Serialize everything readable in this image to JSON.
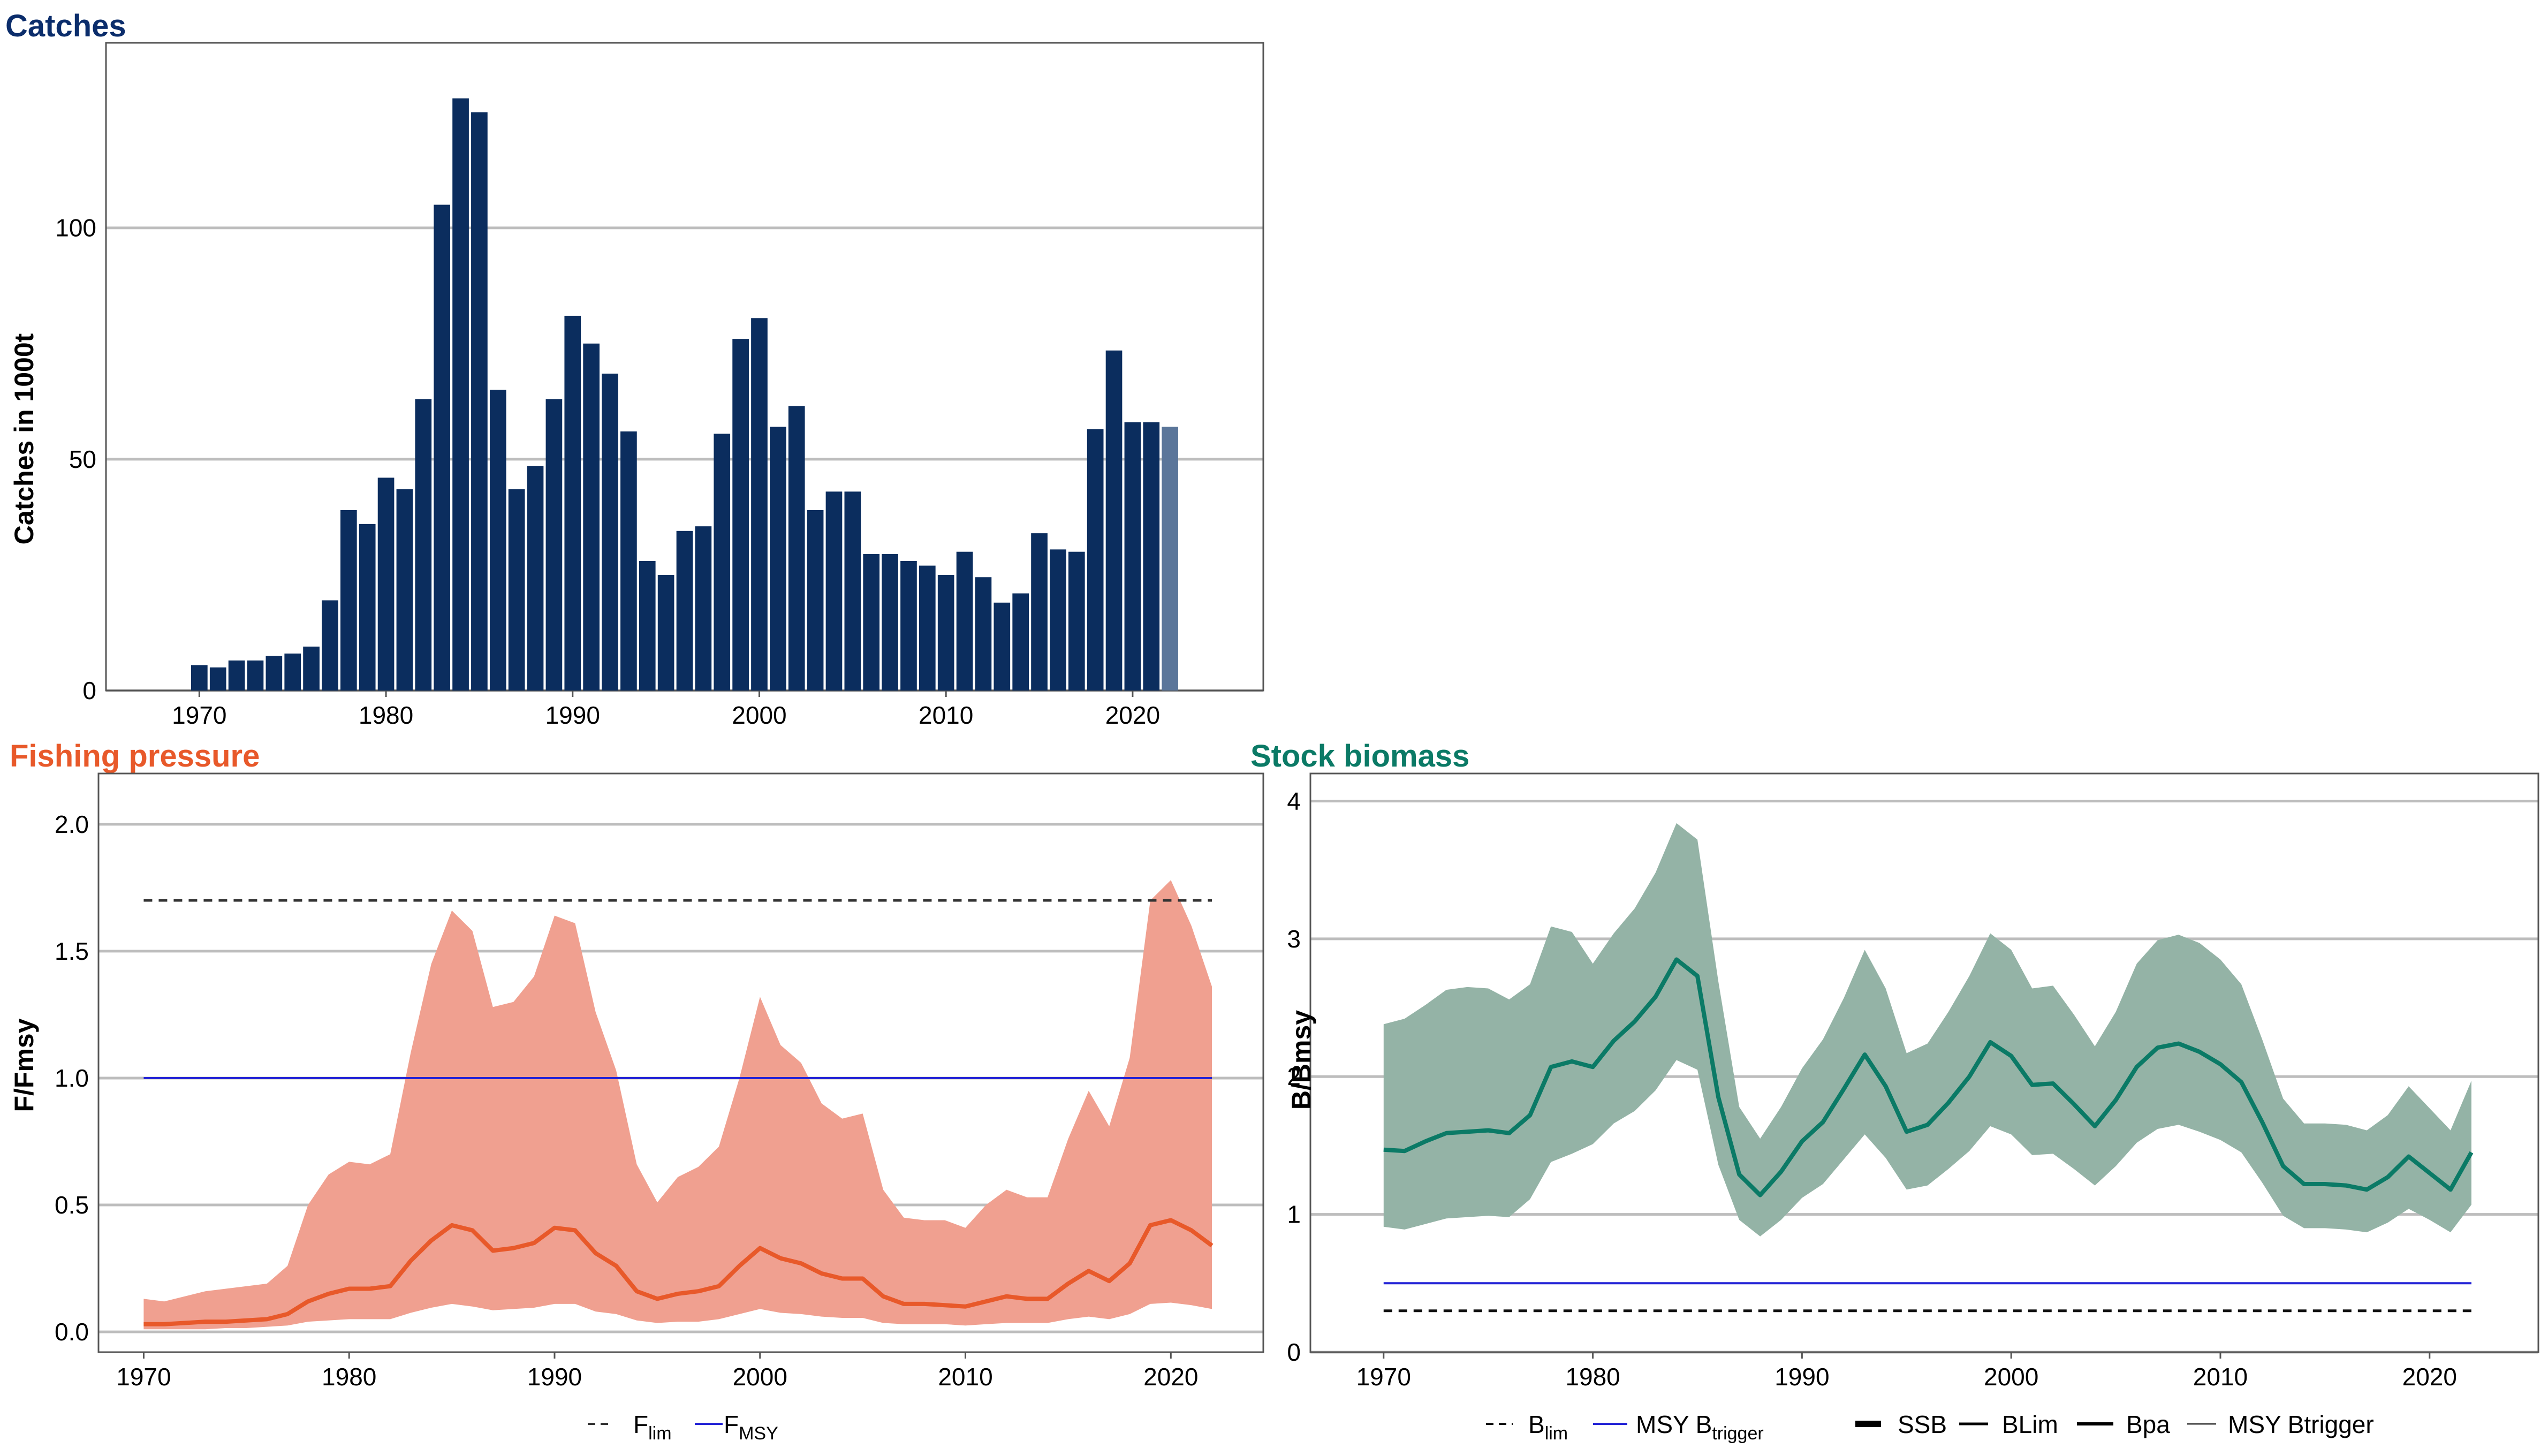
{
  "panels": {
    "catches": {
      "title": "Catches",
      "title_color": "#0b2d6b",
      "ylabel": "Catches in 1000t"
    },
    "fishing": {
      "title": "Fishing pressure",
      "title_color": "#e8592a",
      "ylabel": "F/Fmsy"
    },
    "biomass": {
      "title": "Stock biomass",
      "title_color": "#0b7a66",
      "ylabel": "B/Bmsy"
    }
  },
  "legends": {
    "fishing": [
      {
        "main": "F",
        "sub": "lim",
        "style": "dashed"
      },
      {
        "main": "F",
        "sub": "MSY",
        "style": "blue"
      }
    ],
    "biomass": [
      {
        "main": "B",
        "sub": "lim",
        "style": "dashed"
      },
      {
        "main": "MSY B",
        "sub": "trigger",
        "style": "blue"
      },
      {
        "main": "SSB",
        "sub": "",
        "style": "thick"
      },
      {
        "main": "BLim",
        "sub": "",
        "style": "line"
      },
      {
        "main": "Bpa",
        "sub": "",
        "style": "line"
      },
      {
        "main": "MSY Btrigger",
        "sub": "",
        "style": "thin"
      }
    ]
  },
  "chart_data": [
    {
      "type": "bar",
      "title": "Catches",
      "ylabel": "Catches in 1000t",
      "xlabel": "",
      "x": [
        1970,
        1971,
        1972,
        1973,
        1974,
        1975,
        1976,
        1977,
        1978,
        1979,
        1980,
        1981,
        1982,
        1983,
        1984,
        1985,
        1986,
        1987,
        1988,
        1989,
        1990,
        1991,
        1992,
        1993,
        1994,
        1995,
        1996,
        1997,
        1998,
        1999,
        2000,
        2001,
        2002,
        2003,
        2004,
        2005,
        2006,
        2007,
        2008,
        2009,
        2010,
        2011,
        2012,
        2013,
        2014,
        2015,
        2016,
        2017,
        2018,
        2019,
        2020,
        2021,
        2022
      ],
      "values": [
        5.5,
        5,
        6.5,
        6.5,
        7.5,
        8,
        9.5,
        19.5,
        39,
        36,
        46,
        43.5,
        63,
        105,
        128,
        125,
        65,
        43.5,
        48.5,
        63,
        81,
        75,
        68.5,
        56,
        28,
        25,
        34.5,
        35.5,
        55.5,
        76,
        80.5,
        57,
        61.5,
        39,
        43,
        43,
        29.5,
        29.5,
        28,
        27,
        25,
        30,
        24.5,
        19,
        21,
        34,
        30.5,
        30,
        56.5,
        73.5,
        58,
        58,
        57
      ],
      "highlight_last": true,
      "colors": {
        "bar": "#0b2d5e",
        "bar_last": "#5b769a"
      },
      "xlim": [
        1965,
        2027
      ],
      "ylim": [
        0,
        140
      ],
      "yticks": [
        0,
        50,
        100
      ],
      "xticks": [
        1970,
        1980,
        1990,
        2000,
        2010,
        2020
      ],
      "grid": true
    },
    {
      "type": "line",
      "title": "Fishing pressure",
      "ylabel": "F/Fmsy",
      "xlabel": "",
      "x": [
        1970,
        1971,
        1972,
        1973,
        1974,
        1975,
        1976,
        1977,
        1978,
        1979,
        1980,
        1981,
        1982,
        1983,
        1984,
        1985,
        1986,
        1987,
        1988,
        1989,
        1990,
        1991,
        1992,
        1993,
        1994,
        1995,
        1996,
        1997,
        1998,
        1999,
        2000,
        2001,
        2002,
        2003,
        2004,
        2005,
        2006,
        2007,
        2008,
        2009,
        2010,
        2011,
        2012,
        2013,
        2014,
        2015,
        2016,
        2017,
        2018,
        2019,
        2020,
        2021,
        2022
      ],
      "series": [
        {
          "name": "F",
          "values": [
            0.03,
            0.03,
            0.035,
            0.04,
            0.04,
            0.045,
            0.05,
            0.07,
            0.12,
            0.15,
            0.17,
            0.17,
            0.18,
            0.28,
            0.36,
            0.42,
            0.4,
            0.32,
            0.33,
            0.35,
            0.41,
            0.4,
            0.31,
            0.26,
            0.16,
            0.13,
            0.15,
            0.16,
            0.18,
            0.26,
            0.33,
            0.29,
            0.27,
            0.23,
            0.21,
            0.21,
            0.14,
            0.11,
            0.11,
            0.105,
            0.1,
            0.12,
            0.14,
            0.13,
            0.13,
            0.19,
            0.24,
            0.2,
            0.27,
            0.42,
            0.44,
            0.4,
            0.34
          ],
          "color": "#e8592a"
        }
      ],
      "band": {
        "upper": [
          0.13,
          0.12,
          0.14,
          0.16,
          0.17,
          0.18,
          0.19,
          0.26,
          0.5,
          0.62,
          0.67,
          0.66,
          0.7,
          1.1,
          1.45,
          1.66,
          1.58,
          1.28,
          1.3,
          1.4,
          1.64,
          1.61,
          1.26,
          1.03,
          0.66,
          0.51,
          0.61,
          0.65,
          0.73,
          1.0,
          1.32,
          1.13,
          1.06,
          0.9,
          0.84,
          0.86,
          0.56,
          0.45,
          0.44,
          0.44,
          0.41,
          0.5,
          0.56,
          0.53,
          0.53,
          0.76,
          0.95,
          0.81,
          1.08,
          1.7,
          1.78,
          1.6,
          1.36
        ],
        "lower": [
          0.01,
          0.01,
          0.01,
          0.01,
          0.015,
          0.015,
          0.02,
          0.025,
          0.04,
          0.045,
          0.05,
          0.05,
          0.05,
          0.075,
          0.095,
          0.11,
          0.1,
          0.085,
          0.09,
          0.095,
          0.11,
          0.11,
          0.08,
          0.07,
          0.045,
          0.035,
          0.04,
          0.04,
          0.05,
          0.07,
          0.09,
          0.075,
          0.07,
          0.06,
          0.055,
          0.055,
          0.035,
          0.03,
          0.03,
          0.03,
          0.025,
          0.03,
          0.035,
          0.035,
          0.035,
          0.05,
          0.06,
          0.05,
          0.07,
          0.11,
          0.115,
          0.105,
          0.09
        ],
        "color": "#f0a090"
      },
      "reference_lines": [
        {
          "label": "Flim",
          "value": 1.7,
          "style": "dashed",
          "color": "#333333",
          "x_range": [
            1970,
            2022
          ]
        },
        {
          "label": "FMSY",
          "value": 1.0,
          "style": "solid",
          "color": "#2424d6",
          "x_range": [
            1970,
            2022
          ]
        }
      ],
      "xlim": [
        1967.8,
        2024.5
      ],
      "ylim": [
        -0.08,
        2.2
      ],
      "yticks": [
        0.0,
        0.5,
        1.0,
        1.5,
        2.0
      ],
      "ytick_labels": [
        "0.0",
        "0.5",
        "1.0",
        "1.5",
        "2.0"
      ],
      "xticks": [
        1970,
        1980,
        1990,
        2000,
        2010,
        2020
      ],
      "grid": true
    },
    {
      "type": "line",
      "title": "Stock biomass",
      "ylabel": "B/Bmsy",
      "xlabel": "",
      "x": [
        1970,
        1971,
        1972,
        1973,
        1974,
        1975,
        1976,
        1977,
        1978,
        1979,
        1980,
        1981,
        1982,
        1983,
        1984,
        1985,
        1986,
        1987,
        1988,
        1989,
        1990,
        1991,
        1992,
        1993,
        1994,
        1995,
        1996,
        1997,
        1998,
        1999,
        2000,
        2001,
        2002,
        2003,
        2004,
        2005,
        2006,
        2007,
        2008,
        2009,
        2010,
        2011,
        2012,
        2013,
        2014,
        2015,
        2016,
        2017,
        2018,
        2019,
        2020,
        2021,
        2022
      ],
      "series": [
        {
          "name": "SSB",
          "values": [
            1.47,
            1.46,
            1.53,
            1.59,
            1.6,
            1.61,
            1.59,
            1.72,
            2.07,
            2.11,
            2.07,
            2.26,
            2.4,
            2.58,
            2.85,
            2.73,
            1.85,
            1.29,
            1.14,
            1.31,
            1.53,
            1.67,
            1.91,
            2.16,
            1.93,
            1.6,
            1.65,
            1.81,
            2.0,
            2.25,
            2.15,
            1.94,
            1.95,
            1.8,
            1.64,
            1.83,
            2.07,
            2.21,
            2.24,
            2.18,
            2.09,
            1.96,
            1.67,
            1.35,
            1.22,
            1.22,
            1.21,
            1.18,
            1.27,
            1.42,
            1.3,
            1.18,
            1.45
          ],
          "color": "#0b7a66"
        }
      ],
      "band": {
        "upper": [
          2.38,
          2.42,
          2.52,
          2.63,
          2.65,
          2.64,
          2.56,
          2.67,
          3.09,
          3.05,
          2.82,
          3.04,
          3.22,
          3.48,
          3.84,
          3.72,
          2.69,
          1.78,
          1.55,
          1.78,
          2.06,
          2.27,
          2.57,
          2.92,
          2.64,
          2.17,
          2.24,
          2.47,
          2.73,
          3.04,
          2.92,
          2.64,
          2.66,
          2.45,
          2.22,
          2.47,
          2.82,
          2.99,
          3.03,
          2.97,
          2.85,
          2.67,
          2.27,
          1.84,
          1.66,
          1.66,
          1.65,
          1.61,
          1.72,
          1.93,
          1.77,
          1.61,
          1.97
        ],
        "lower": [
          0.91,
          0.89,
          0.93,
          0.97,
          0.98,
          0.99,
          0.98,
          1.11,
          1.38,
          1.44,
          1.51,
          1.66,
          1.75,
          1.9,
          2.12,
          2.05,
          1.36,
          0.96,
          0.84,
          0.96,
          1.12,
          1.22,
          1.4,
          1.58,
          1.41,
          1.18,
          1.21,
          1.33,
          1.46,
          1.64,
          1.58,
          1.43,
          1.44,
          1.33,
          1.21,
          1.35,
          1.52,
          1.62,
          1.65,
          1.6,
          1.54,
          1.45,
          1.23,
          0.99,
          0.9,
          0.9,
          0.89,
          0.87,
          0.94,
          1.04,
          0.96,
          0.87,
          1.07
        ],
        "color": "#94b3a6"
      },
      "reference_lines": [
        {
          "label": "Blim",
          "value": 0.3,
          "style": "dashed",
          "color": "#111111",
          "x_range": [
            1970,
            2022
          ]
        },
        {
          "label": "MSY Btrigger",
          "value": 0.5,
          "style": "solid",
          "color": "#2424d6",
          "x_range": [
            1970,
            2022
          ]
        }
      ],
      "xlim": [
        1966.5,
        2025.2
      ],
      "ylim": [
        0,
        4.2
      ],
      "yticks": [
        0,
        1,
        2,
        3,
        4
      ],
      "ytick_labels": [
        "0",
        "1",
        "2",
        "3",
        "4"
      ],
      "xticks": [
        1970,
        1980,
        1990,
        2000,
        2010,
        2020
      ],
      "grid": true
    }
  ]
}
